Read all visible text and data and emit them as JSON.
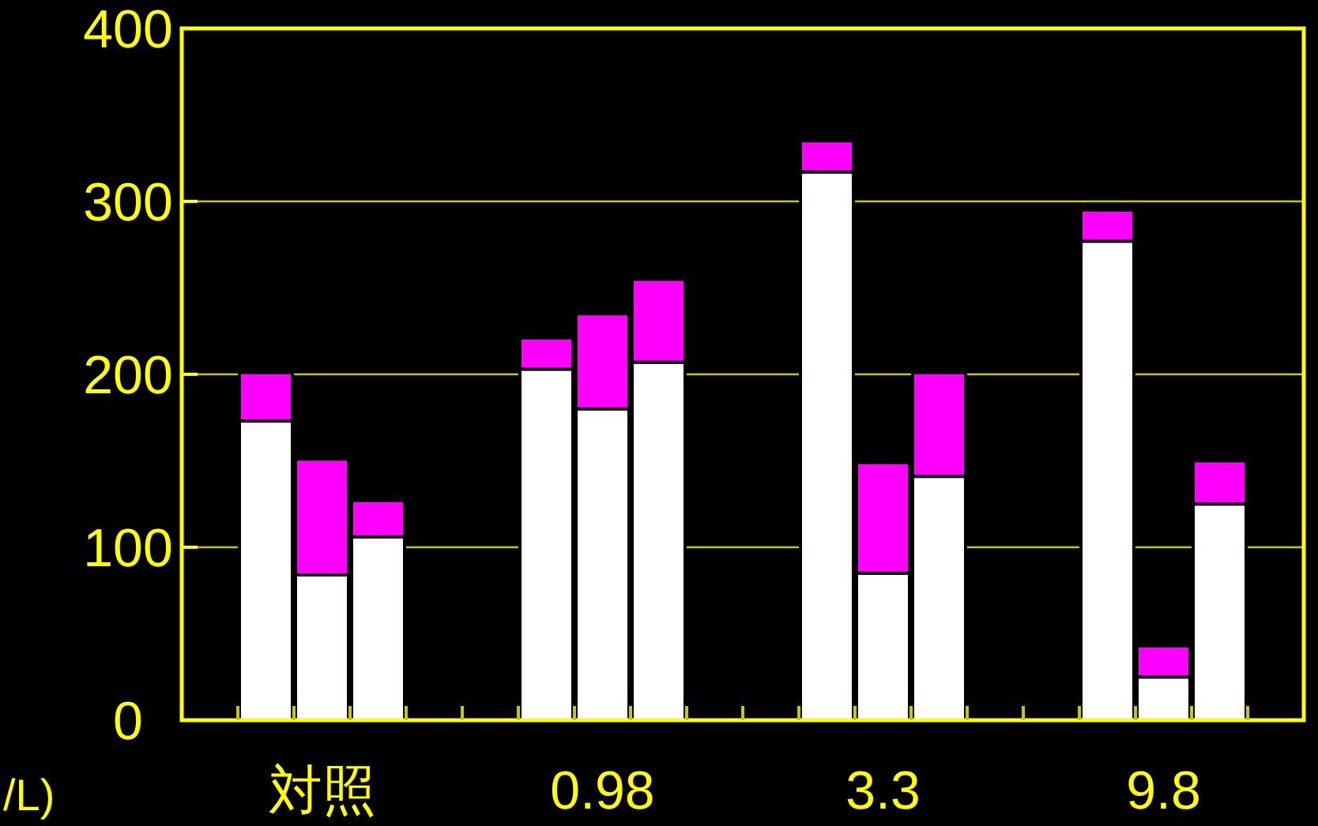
{
  "chart_data": {
    "type": "bar",
    "stacked": true,
    "categories": [
      null,
      "対照",
      null,
      null,
      "0.98",
      null,
      null,
      "3.3",
      null,
      null,
      "9.8",
      null
    ],
    "series": [
      {
        "color": "#ffffff",
        "values": [
          173,
          84,
          106,
          203,
          180,
          207,
          317,
          85,
          141,
          277,
          25,
          125
        ]
      },
      {
        "color": "#ff00ff",
        "values": [
          28,
          67,
          21,
          18,
          55,
          48,
          18,
          64,
          60,
          18,
          18,
          25
        ]
      }
    ],
    "ylim": [
      0,
      400
    ],
    "yticks": [
      0,
      100,
      200,
      300,
      400
    ],
    "grid": "y",
    "annotations": [
      "/L)"
    ]
  }
}
